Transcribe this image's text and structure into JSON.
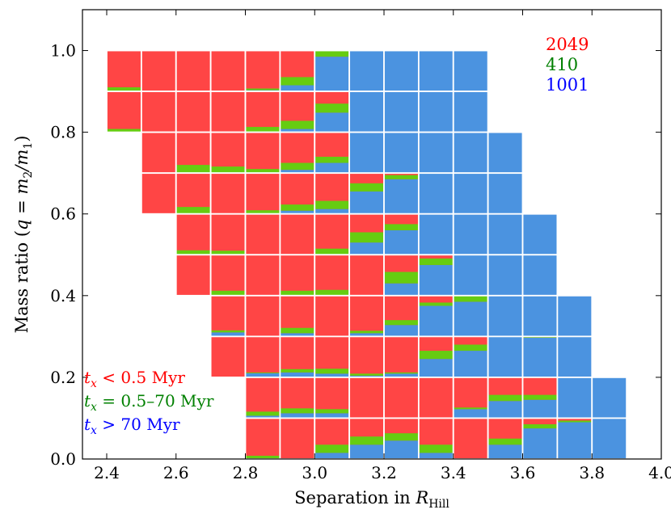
{
  "chart_data": {
    "type": "heatmap",
    "title": "",
    "xlabel_prefix": "Separation in ",
    "xlabel_symbol": "R",
    "xlabel_sub": "Hill",
    "ylabel_prefix": "Mass ratio (",
    "ylabel_math": "q = m",
    "ylabel_sub2": "2",
    "ylabel_slash": "/m",
    "ylabel_sub1": "1",
    "ylabel_suffix": ")",
    "xlim": [
      2.33,
      4.0
    ],
    "ylim": [
      0.0,
      1.1
    ],
    "xticks": [
      "2.4",
      "2.6",
      "2.8",
      "3.0",
      "3.2",
      "3.4",
      "3.6",
      "3.8",
      "4.0"
    ],
    "yticks": [
      "0.0",
      "0.2",
      "0.4",
      "0.6",
      "0.8",
      "1.0"
    ],
    "cell_width": 0.1,
    "cell_height": 0.1,
    "colors": {
      "red": "#ff4545",
      "green": "#66cc11",
      "blue": "#4b93e0"
    },
    "counts": [
      {
        "label": "2049",
        "color": "#ff0000"
      },
      {
        "label": "410",
        "color": "#008000"
      },
      {
        "label": "1001",
        "color": "#0000ff"
      }
    ],
    "legend": {
      "placement": "bottom-left",
      "entries": [
        {
          "symbol": "t",
          "sub": "x",
          "text": " < 0.5 Myr",
          "color": "#ff0000"
        },
        {
          "symbol": "t",
          "sub": "x",
          "text": " = 0.5–70 Myr",
          "color": "#008000"
        },
        {
          "symbol": "t",
          "sub": "x",
          "text": " > 70 Myr",
          "color": "#0000ff"
        }
      ]
    },
    "cells": [
      {
        "x": 2.45,
        "y": 0.95,
        "blue": 0,
        "green": 0.1
      },
      {
        "x": 2.55,
        "y": 0.95,
        "blue": 0,
        "green": 0
      },
      {
        "x": 2.65,
        "y": 0.95,
        "blue": 0,
        "green": 0
      },
      {
        "x": 2.75,
        "y": 0.95,
        "blue": 0,
        "green": 0
      },
      {
        "x": 2.85,
        "y": 0.95,
        "blue": 0.03,
        "green": 0.04
      },
      {
        "x": 2.95,
        "y": 0.95,
        "blue": 0.15,
        "green": 0.2
      },
      {
        "x": 3.05,
        "y": 0.95,
        "blue": 0.85,
        "green": 0.15
      },
      {
        "x": 3.15,
        "y": 0.95,
        "blue": 1,
        "green": 0
      },
      {
        "x": 3.25,
        "y": 0.95,
        "blue": 1,
        "green": 0
      },
      {
        "x": 3.35,
        "y": 0.95,
        "blue": 1,
        "green": 0
      },
      {
        "x": 3.45,
        "y": 0.95,
        "blue": 1,
        "green": 0
      },
      {
        "x": 2.45,
        "y": 0.85,
        "blue": 0,
        "green": 0.08
      },
      {
        "x": 2.55,
        "y": 0.85,
        "blue": 0,
        "green": 0
      },
      {
        "x": 2.65,
        "y": 0.85,
        "blue": 0,
        "green": 0
      },
      {
        "x": 2.75,
        "y": 0.85,
        "blue": 0,
        "green": 0
      },
      {
        "x": 2.85,
        "y": 0.85,
        "blue": 0,
        "green": 0.13
      },
      {
        "x": 2.95,
        "y": 0.85,
        "blue": 0.08,
        "green": 0.2
      },
      {
        "x": 3.05,
        "y": 0.85,
        "blue": 0.48,
        "green": 0.22
      },
      {
        "x": 3.15,
        "y": 0.85,
        "blue": 1,
        "green": 0
      },
      {
        "x": 3.25,
        "y": 0.85,
        "blue": 1,
        "green": 0
      },
      {
        "x": 3.35,
        "y": 0.85,
        "blue": 1,
        "green": 0
      },
      {
        "x": 3.45,
        "y": 0.85,
        "blue": 1,
        "green": 0
      },
      {
        "x": 2.55,
        "y": 0.75,
        "blue": 0,
        "green": 0
      },
      {
        "x": 2.65,
        "y": 0.75,
        "blue": 0,
        "green": 0.2
      },
      {
        "x": 2.75,
        "y": 0.75,
        "blue": 0,
        "green": 0.16
      },
      {
        "x": 2.85,
        "y": 0.75,
        "blue": 0,
        "green": 0.1
      },
      {
        "x": 2.95,
        "y": 0.75,
        "blue": 0.08,
        "green": 0.17
      },
      {
        "x": 3.05,
        "y": 0.75,
        "blue": 0.25,
        "green": 0.15
      },
      {
        "x": 3.15,
        "y": 0.75,
        "blue": 1,
        "green": 0
      },
      {
        "x": 3.25,
        "y": 0.75,
        "blue": 1,
        "green": 0
      },
      {
        "x": 3.35,
        "y": 0.75,
        "blue": 1,
        "green": 0
      },
      {
        "x": 3.45,
        "y": 0.75,
        "blue": 1,
        "green": 0
      },
      {
        "x": 3.55,
        "y": 0.75,
        "blue": 1,
        "green": 0
      },
      {
        "x": 2.55,
        "y": 0.65,
        "blue": 0,
        "green": 0
      },
      {
        "x": 2.65,
        "y": 0.65,
        "blue": 0,
        "green": 0.17
      },
      {
        "x": 2.75,
        "y": 0.65,
        "blue": 0,
        "green": 0
      },
      {
        "x": 2.85,
        "y": 0.65,
        "blue": 0,
        "green": 0.09
      },
      {
        "x": 2.95,
        "y": 0.65,
        "blue": 0.08,
        "green": 0.15
      },
      {
        "x": 3.05,
        "y": 0.65,
        "blue": 0.12,
        "green": 0.2
      },
      {
        "x": 3.15,
        "y": 0.65,
        "blue": 0.55,
        "green": 0.2
      },
      {
        "x": 3.25,
        "y": 0.65,
        "blue": 0.85,
        "green": 0.1
      },
      {
        "x": 3.35,
        "y": 0.65,
        "blue": 1,
        "green": 0
      },
      {
        "x": 3.45,
        "y": 0.65,
        "blue": 1,
        "green": 0
      },
      {
        "x": 3.55,
        "y": 0.65,
        "blue": 1,
        "green": 0
      },
      {
        "x": 2.65,
        "y": 0.55,
        "blue": 0,
        "green": 0.11
      },
      {
        "x": 2.75,
        "y": 0.55,
        "blue": 0,
        "green": 0.1
      },
      {
        "x": 2.85,
        "y": 0.55,
        "blue": 0,
        "green": 0
      },
      {
        "x": 2.95,
        "y": 0.55,
        "blue": 0,
        "green": 0
      },
      {
        "x": 3.05,
        "y": 0.55,
        "blue": 0,
        "green": 0.15
      },
      {
        "x": 3.15,
        "y": 0.55,
        "blue": 0.3,
        "green": 0.25
      },
      {
        "x": 3.25,
        "y": 0.55,
        "blue": 0.6,
        "green": 0.15
      },
      {
        "x": 3.35,
        "y": 0.55,
        "blue": 1,
        "green": 0
      },
      {
        "x": 3.45,
        "y": 0.55,
        "blue": 1,
        "green": 0
      },
      {
        "x": 3.55,
        "y": 0.55,
        "blue": 1,
        "green": 0
      },
      {
        "x": 3.65,
        "y": 0.55,
        "blue": 1,
        "green": 0
      },
      {
        "x": 2.65,
        "y": 0.45,
        "blue": 0,
        "green": 0
      },
      {
        "x": 2.75,
        "y": 0.45,
        "blue": 0,
        "green": 0.12
      },
      {
        "x": 2.85,
        "y": 0.45,
        "blue": 0,
        "green": 0
      },
      {
        "x": 2.95,
        "y": 0.45,
        "blue": 0,
        "green": 0.12
      },
      {
        "x": 3.05,
        "y": 0.45,
        "blue": 0,
        "green": 0.14
      },
      {
        "x": 3.15,
        "y": 0.45,
        "blue": 0,
        "green": 0
      },
      {
        "x": 3.25,
        "y": 0.45,
        "blue": 0.3,
        "green": 0.28
      },
      {
        "x": 3.35,
        "y": 0.45,
        "blue": 0.75,
        "green": 0.16
      },
      {
        "x": 3.45,
        "y": 0.45,
        "blue": 1,
        "green": 0
      },
      {
        "x": 3.55,
        "y": 0.45,
        "blue": 1,
        "green": 0
      },
      {
        "x": 3.65,
        "y": 0.45,
        "blue": 1,
        "green": 0
      },
      {
        "x": 2.75,
        "y": 0.35,
        "blue": 0.1,
        "green": 0.05
      },
      {
        "x": 2.85,
        "y": 0.35,
        "blue": 0,
        "green": 0
      },
      {
        "x": 2.95,
        "y": 0.35,
        "blue": 0.08,
        "green": 0.13
      },
      {
        "x": 3.05,
        "y": 0.35,
        "blue": 0,
        "green": 0
      },
      {
        "x": 3.15,
        "y": 0.35,
        "blue": 0.08,
        "green": 0.06
      },
      {
        "x": 3.25,
        "y": 0.35,
        "blue": 0.28,
        "green": 0.12
      },
      {
        "x": 3.35,
        "y": 0.35,
        "blue": 0.75,
        "green": 0.08
      },
      {
        "x": 3.45,
        "y": 0.35,
        "blue": 0.85,
        "green": 0.15
      },
      {
        "x": 3.55,
        "y": 0.35,
        "blue": 1,
        "green": 0
      },
      {
        "x": 3.65,
        "y": 0.35,
        "blue": 1,
        "green": 0
      },
      {
        "x": 3.75,
        "y": 0.35,
        "blue": 1,
        "green": 0
      },
      {
        "x": 2.75,
        "y": 0.25,
        "blue": 0,
        "green": 0
      },
      {
        "x": 2.85,
        "y": 0.25,
        "blue": 0.1,
        "green": 0.02
      },
      {
        "x": 2.95,
        "y": 0.25,
        "blue": 0.12,
        "green": 0.08
      },
      {
        "x": 3.05,
        "y": 0.25,
        "blue": 0.09,
        "green": 0.12
      },
      {
        "x": 3.15,
        "y": 0.25,
        "blue": 0.04,
        "green": 0.05
      },
      {
        "x": 3.25,
        "y": 0.25,
        "blue": 0.09,
        "green": 0.03
      },
      {
        "x": 3.35,
        "y": 0.25,
        "blue": 0.45,
        "green": 0.2
      },
      {
        "x": 3.45,
        "y": 0.25,
        "blue": 0.65,
        "green": 0.15
      },
      {
        "x": 3.55,
        "y": 0.25,
        "blue": 1,
        "green": 0
      },
      {
        "x": 3.65,
        "y": 0.25,
        "blue": 0.97,
        "green": 0.02
      },
      {
        "x": 3.75,
        "y": 0.25,
        "blue": 1,
        "green": 0
      },
      {
        "x": 2.85,
        "y": 0.15,
        "blue": 0.06,
        "green": 0.1
      },
      {
        "x": 2.95,
        "y": 0.15,
        "blue": 0.12,
        "green": 0.12
      },
      {
        "x": 3.05,
        "y": 0.15,
        "blue": 0.12,
        "green": 0.1
      },
      {
        "x": 3.15,
        "y": 0.15,
        "blue": 0,
        "green": 0
      },
      {
        "x": 3.25,
        "y": 0.15,
        "blue": 0,
        "green": 0
      },
      {
        "x": 3.35,
        "y": 0.15,
        "blue": 0,
        "green": 0
      },
      {
        "x": 3.45,
        "y": 0.15,
        "blue": 0.22,
        "green": 0.04
      },
      {
        "x": 3.55,
        "y": 0.15,
        "blue": 0.42,
        "green": 0.15
      },
      {
        "x": 3.65,
        "y": 0.15,
        "blue": 0.45,
        "green": 0.12
      },
      {
        "x": 3.75,
        "y": 0.15,
        "blue": 1,
        "green": 0
      },
      {
        "x": 3.85,
        "y": 0.15,
        "blue": 1,
        "green": 0
      },
      {
        "x": 2.85,
        "y": 0.05,
        "blue": 0,
        "green": 0.08
      },
      {
        "x": 2.95,
        "y": 0.05,
        "blue": 0,
        "green": 0
      },
      {
        "x": 3.05,
        "y": 0.05,
        "blue": 0.15,
        "green": 0.2
      },
      {
        "x": 3.15,
        "y": 0.05,
        "blue": 0.35,
        "green": 0.2
      },
      {
        "x": 3.25,
        "y": 0.05,
        "blue": 0.45,
        "green": 0.18
      },
      {
        "x": 3.35,
        "y": 0.05,
        "blue": 0.15,
        "green": 0.2
      },
      {
        "x": 3.45,
        "y": 0.05,
        "blue": 0,
        "green": 0
      },
      {
        "x": 3.55,
        "y": 0.05,
        "blue": 0.35,
        "green": 0.15
      },
      {
        "x": 3.65,
        "y": 0.05,
        "blue": 0.75,
        "green": 0.1
      },
      {
        "x": 3.75,
        "y": 0.05,
        "blue": 0.9,
        "green": 0.04
      },
      {
        "x": 3.85,
        "y": 0.05,
        "blue": 1,
        "green": 0
      }
    ]
  }
}
